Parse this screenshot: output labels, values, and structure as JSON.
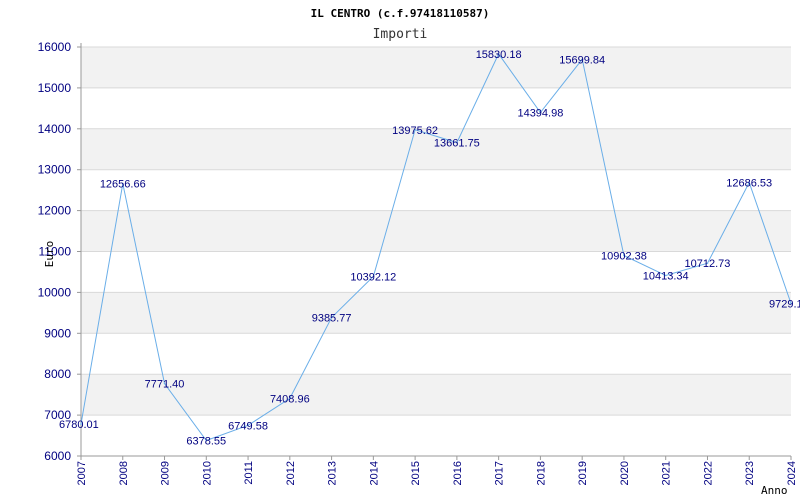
{
  "chart_data": {
    "type": "line",
    "title": "IL CENTRO (c.f.97418110587)",
    "subtitle": "Importi",
    "xlabel": "Anno",
    "ylabel": "Euro",
    "ylim": [
      6000,
      16000
    ],
    "yticks": [
      "6000",
      "7000",
      "8000",
      "9000",
      "10000",
      "11000",
      "12000",
      "13000",
      "14000",
      "15000",
      "16000"
    ],
    "categories": [
      "2007",
      "2008",
      "2009",
      "2010",
      "2011",
      "2012",
      "2013",
      "2014",
      "2015",
      "2016",
      "2017",
      "2018",
      "2019",
      "2020",
      "2021",
      "2022",
      "2023",
      "2024"
    ],
    "values": [
      6780.01,
      12656.66,
      7771.4,
      6378.55,
      6749.58,
      7408.96,
      9385.77,
      10392.12,
      13975.62,
      13661.75,
      15830.18,
      14394.98,
      15699.84,
      10902.38,
      10413.34,
      10712.73,
      12686.53,
      9729.1
    ],
    "labels": [
      "6780.01",
      "12656.66",
      "7771.40",
      "6378.55",
      "6749.58",
      "7408.96",
      "9385.77",
      "10392.12",
      "13975.62",
      "13661.75",
      "15830.18",
      "14394.98",
      "15699.84",
      "10902.38",
      "10413.34",
      "10712.73",
      "12686.53",
      "9729.1"
    ],
    "grid": true,
    "colors": {
      "line": "#6aaee8",
      "band": "#f2f2f2",
      "grid": "#d9d9d9",
      "tick": "#000080"
    }
  }
}
